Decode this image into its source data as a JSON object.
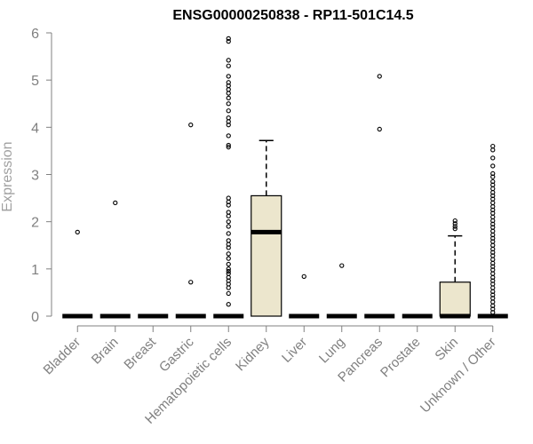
{
  "chart_data": {
    "type": "box",
    "title": "ENSG00000250838 - RP11-501C14.5",
    "ylabel": "Expression",
    "ylim": [
      0,
      6
    ],
    "yticks": [
      "0",
      "1",
      "2",
      "3",
      "4",
      "5",
      "6"
    ],
    "colors": {
      "box_fill": "#ece6cd",
      "outline": "#000000",
      "axis": "#808080"
    },
    "categories": [
      "Bladder",
      "Brain",
      "Breast",
      "Gastric",
      "Hematopoietic cells",
      "Kidney",
      "Liver",
      "Lung",
      "Pancreas",
      "Prostate",
      "Skin",
      "Unknown / Other"
    ],
    "boxes": [
      {
        "category": "Bladder",
        "q1": 0,
        "median": 0,
        "q3": 0,
        "whisker_low": 0,
        "whisker_high": 0,
        "outliers": [
          1.78
        ]
      },
      {
        "category": "Brain",
        "q1": 0,
        "median": 0,
        "q3": 0,
        "whisker_low": 0,
        "whisker_high": 0,
        "outliers": [
          2.4
        ]
      },
      {
        "category": "Breast",
        "q1": 0,
        "median": 0,
        "q3": 0,
        "whisker_low": 0,
        "whisker_high": 0,
        "outliers": []
      },
      {
        "category": "Gastric",
        "q1": 0,
        "median": 0,
        "q3": 0,
        "whisker_low": 0,
        "whisker_high": 0,
        "outliers": [
          4.05,
          0.72
        ]
      },
      {
        "category": "Hematopoietic cells",
        "q1": 0,
        "median": 0,
        "q3": 0,
        "whisker_low": 0,
        "whisker_high": 0,
        "outliers": [
          5.88,
          5.82,
          5.42,
          5.3,
          5.08,
          4.95,
          4.88,
          4.8,
          4.72,
          4.62,
          4.5,
          4.35,
          4.2,
          4.12,
          4.05,
          3.82,
          3.62,
          3.58,
          2.5,
          2.42,
          2.35,
          2.2,
          2.12,
          2.0,
          1.9,
          1.75,
          1.6,
          1.52,
          1.45,
          1.32,
          1.22,
          1.1,
          1.0,
          0.95,
          0.9,
          0.82,
          0.75,
          0.68,
          0.6,
          0.48,
          0.25
        ]
      },
      {
        "category": "Kidney",
        "q1": 0,
        "median": 1.78,
        "q3": 2.55,
        "whisker_low": 0,
        "whisker_high": 3.72,
        "outliers": []
      },
      {
        "category": "Liver",
        "q1": 0,
        "median": 0,
        "q3": 0,
        "whisker_low": 0,
        "whisker_high": 0,
        "outliers": [
          0.84
        ]
      },
      {
        "category": "Lung",
        "q1": 0,
        "median": 0,
        "q3": 0,
        "whisker_low": 0,
        "whisker_high": 0,
        "outliers": [
          1.07
        ]
      },
      {
        "category": "Pancreas",
        "q1": 0,
        "median": 0,
        "q3": 0,
        "whisker_low": 0,
        "whisker_high": 0,
        "outliers": [
          5.08,
          3.96
        ]
      },
      {
        "category": "Prostate",
        "q1": 0,
        "median": 0,
        "q3": 0,
        "whisker_low": 0,
        "whisker_high": 0,
        "outliers": []
      },
      {
        "category": "Skin",
        "q1": 0,
        "median": 0,
        "q3": 0.72,
        "whisker_low": 0,
        "whisker_high": 1.7,
        "outliers": [
          2.02,
          1.96,
          1.9,
          1.85
        ]
      },
      {
        "category": "Unknown / Other",
        "q1": 0,
        "median": 0,
        "q3": 0,
        "whisker_low": 0,
        "whisker_high": 0,
        "outliers": [
          3.6,
          3.52,
          3.35,
          3.18,
          3.02,
          2.95,
          2.85,
          2.78,
          2.7,
          2.62,
          2.55,
          2.48,
          2.4,
          2.32,
          2.25,
          2.18,
          2.1,
          2.02,
          1.95,
          1.88,
          1.8,
          1.72,
          1.65,
          1.58,
          1.5,
          1.42,
          1.35,
          1.28,
          1.2,
          1.12,
          1.05,
          0.98,
          0.9,
          0.82,
          0.75,
          0.68,
          0.6,
          0.52,
          0.45,
          0.38,
          0.3,
          0.22,
          0.15,
          0.08
        ]
      }
    ]
  }
}
